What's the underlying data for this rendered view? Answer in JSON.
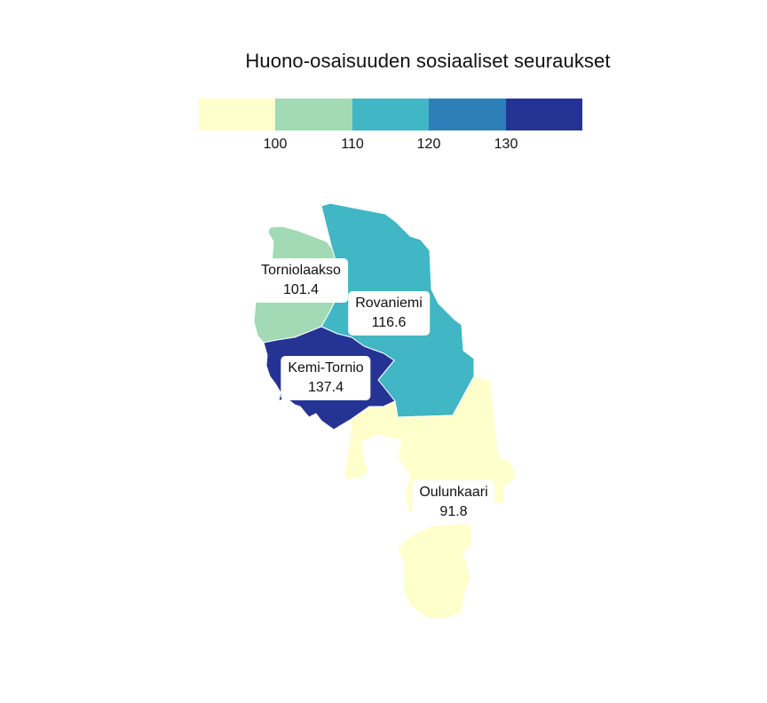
{
  "title": "Huono-osaisuuden sosiaaliset seuraukset",
  "legend": {
    "colors": [
      "#ffffcc",
      "#a1dab4",
      "#41b6c4",
      "#2c7fb8",
      "#253494"
    ],
    "ticks": [
      "100",
      "110",
      "120",
      "130"
    ]
  },
  "regions": [
    {
      "id": "tornionlaakso",
      "name": "Torniolaakso",
      "value": "101.4",
      "color": "#a1dab4"
    },
    {
      "id": "rovaniemi",
      "name": "Rovaniemi",
      "value": "116.6",
      "color": "#41b6c4"
    },
    {
      "id": "kemi-tornio",
      "name": "Kemi-Tornio",
      "value": "137.4",
      "color": "#253494"
    },
    {
      "id": "oulunkaari",
      "name": "Oulunkaari",
      "value": "91.8",
      "color": "#ffffcc"
    }
  ]
}
